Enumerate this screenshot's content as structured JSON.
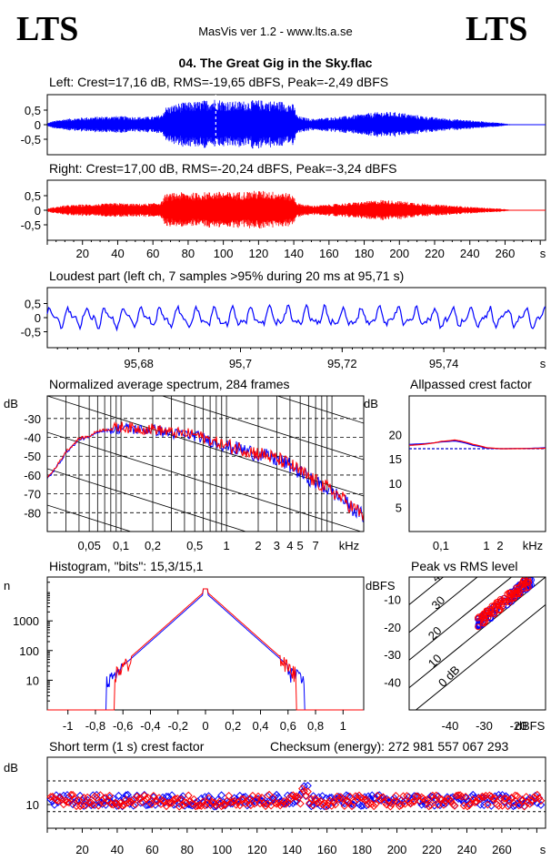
{
  "header": {
    "logo_left": "LTS",
    "logo_right": "LTS",
    "app_title": "MasVis ver 1.2 - www.lts.a.se",
    "track_title": "04. The Great Gig in the Sky.flac"
  },
  "colors": {
    "left": "#0000ff",
    "right": "#ff0000",
    "frame": "#000000"
  },
  "chart_data": [
    {
      "id": "left_waveform",
      "type": "area",
      "title": "Left: Crest=17,16 dB, RMS=-19,65 dBFS, Peak=-2,49 dBFS",
      "series": [
        {
          "name": "left",
          "color": "#0000ff"
        }
      ],
      "ylim": [
        -1,
        1
      ],
      "yticks": [
        "0,5",
        "0",
        "-0,5"
      ],
      "xlim": [
        0,
        283
      ],
      "envelope": [
        [
          0,
          0.05
        ],
        [
          3,
          0.12
        ],
        [
          10,
          0.2
        ],
        [
          20,
          0.25
        ],
        [
          30,
          0.28
        ],
        [
          40,
          0.3
        ],
        [
          50,
          0.27
        ],
        [
          60,
          0.28
        ],
        [
          65,
          0.35
        ],
        [
          67,
          0.6
        ],
        [
          75,
          0.75
        ],
        [
          85,
          0.8
        ],
        [
          95,
          0.9
        ],
        [
          105,
          0.8
        ],
        [
          120,
          0.85
        ],
        [
          135,
          0.8
        ],
        [
          140,
          0.7
        ],
        [
          142,
          0.3
        ],
        [
          150,
          0.2
        ],
        [
          160,
          0.25
        ],
        [
          170,
          0.3
        ],
        [
          180,
          0.38
        ],
        [
          190,
          0.45
        ],
        [
          200,
          0.42
        ],
        [
          210,
          0.33
        ],
        [
          220,
          0.25
        ],
        [
          230,
          0.2
        ],
        [
          240,
          0.15
        ],
        [
          250,
          0.1
        ],
        [
          258,
          0.06
        ],
        [
          262,
          0.02
        ],
        [
          270,
          0
        ],
        [
          283,
          0
        ]
      ],
      "marker_x": 95.71
    },
    {
      "id": "right_waveform",
      "type": "area",
      "title": "Right: Crest=17,00 dB, RMS=-20,24 dBFS, Peak=-3,24 dBFS",
      "series": [
        {
          "name": "right",
          "color": "#ff0000"
        }
      ],
      "ylim": [
        -1,
        1
      ],
      "yticks": [
        "0,5",
        "0",
        "-0,5"
      ],
      "xlim": [
        0,
        283
      ],
      "xticks": [
        "20",
        "40",
        "60",
        "80",
        "100",
        "120",
        "140",
        "160",
        "180",
        "200",
        "220",
        "240",
        "260"
      ],
      "xunit": "s",
      "envelope": [
        [
          0,
          0.05
        ],
        [
          3,
          0.1
        ],
        [
          10,
          0.17
        ],
        [
          20,
          0.2
        ],
        [
          30,
          0.22
        ],
        [
          40,
          0.25
        ],
        [
          50,
          0.22
        ],
        [
          60,
          0.24
        ],
        [
          65,
          0.3
        ],
        [
          67,
          0.55
        ],
        [
          75,
          0.62
        ],
        [
          85,
          0.6
        ],
        [
          95,
          0.65
        ],
        [
          105,
          0.62
        ],
        [
          120,
          0.68
        ],
        [
          135,
          0.62
        ],
        [
          140,
          0.5
        ],
        [
          142,
          0.25
        ],
        [
          150,
          0.16
        ],
        [
          160,
          0.2
        ],
        [
          170,
          0.25
        ],
        [
          180,
          0.3
        ],
        [
          190,
          0.36
        ],
        [
          200,
          0.32
        ],
        [
          210,
          0.26
        ],
        [
          220,
          0.2
        ],
        [
          230,
          0.16
        ],
        [
          240,
          0.12
        ],
        [
          250,
          0.08
        ],
        [
          258,
          0.05
        ],
        [
          262,
          0.02
        ],
        [
          270,
          0
        ],
        [
          283,
          0
        ]
      ]
    },
    {
      "id": "loudest_part",
      "type": "line",
      "title": "Loudest part (left  ch, 7 samples >95% during 20 ms at 95,71 s)",
      "series": [
        {
          "name": "left",
          "color": "#0000ff"
        }
      ],
      "ylim": [
        -1,
        1
      ],
      "yticks": [
        "0,5",
        "0",
        "-0,5"
      ],
      "xlim": [
        95.662,
        95.76
      ],
      "xticks": [
        "95,68",
        "95,7",
        "95,72",
        "95,74"
      ],
      "xunit": "s"
    },
    {
      "id": "spectrum",
      "type": "line",
      "title": "Normalized average spectrum, 284 frames",
      "ylabel": "dB",
      "yticks": [
        "-30",
        "-40",
        "-50",
        "-60",
        "-70",
        "-80"
      ],
      "ylim": [
        -90,
        -18
      ],
      "xscale": "log",
      "xlim": [
        0.02,
        20
      ],
      "xticks": [
        "0,05",
        "0,1",
        "0,2",
        "0,5",
        "1",
        "2",
        "3",
        "4",
        "5",
        "7"
      ],
      "xunit": "kHz",
      "curve_points": [
        [
          0.02,
          -62
        ],
        [
          0.025,
          -55
        ],
        [
          0.03,
          -48
        ],
        [
          0.04,
          -41
        ],
        [
          0.05,
          -40
        ],
        [
          0.06,
          -37
        ],
        [
          0.08,
          -36
        ],
        [
          0.1,
          -35
        ],
        [
          0.15,
          -36
        ],
        [
          0.2,
          -36
        ],
        [
          0.3,
          -38
        ],
        [
          0.5,
          -39
        ],
        [
          0.7,
          -42
        ],
        [
          1,
          -45
        ],
        [
          1.5,
          -47
        ],
        [
          2,
          -49
        ],
        [
          3,
          -52
        ],
        [
          4,
          -55
        ],
        [
          5,
          -59
        ],
        [
          7,
          -64
        ],
        [
          10,
          -69
        ],
        [
          15,
          -77
        ],
        [
          20,
          -82
        ]
      ],
      "series": [
        {
          "name": "left",
          "color": "#0000ff"
        },
        {
          "name": "right",
          "color": "#ff0000"
        }
      ]
    },
    {
      "id": "allpassed_crest",
      "type": "line",
      "title": "Allpassed crest factor",
      "ylabel": "dB",
      "yticks": [
        "20",
        "15",
        "10",
        "5"
      ],
      "ylim": [
        0,
        28
      ],
      "xscale": "log",
      "xlim": [
        0.02,
        20
      ],
      "xticks": [
        "0,1",
        "1",
        "2"
      ],
      "xunit": "kHz",
      "reference_level": 17.1,
      "series": [
        {
          "name": "left",
          "color": "#0000ff",
          "points": [
            [
              0.02,
              18
            ],
            [
              0.1,
              18.5
            ],
            [
              0.2,
              18.7
            ],
            [
              0.5,
              17.8
            ],
            [
              1,
              17.2
            ],
            [
              2,
              17.1
            ],
            [
              20,
              17.3
            ]
          ]
        },
        {
          "name": "right",
          "color": "#ff0000",
          "points": [
            [
              0.02,
              17.8
            ],
            [
              0.1,
              18.6
            ],
            [
              0.2,
              18.9
            ],
            [
              0.5,
              18
            ],
            [
              1,
              17.3
            ],
            [
              2,
              17.1
            ],
            [
              20,
              17.2
            ]
          ]
        }
      ]
    },
    {
      "id": "histogram",
      "type": "line",
      "title": "Histogram, \"bits\": 15,3/15,1",
      "ylabel": "n",
      "yscale": "log",
      "ylim": [
        1,
        30000
      ],
      "yticks": [
        "1000",
        "100",
        "10"
      ],
      "xlim": [
        -1.15,
        1.15
      ],
      "xticks": [
        "-1",
        "-0,8",
        "-0,6",
        "-0,4",
        "-0,2",
        "0",
        "0,2",
        "0,4",
        "0,6",
        "0,8",
        "1"
      ],
      "series": [
        {
          "name": "left",
          "color": "#0000ff",
          "extent": 0.72
        },
        {
          "name": "right",
          "color": "#ff0000",
          "extent": 0.66
        }
      ]
    },
    {
      "id": "peak_vs_rms",
      "type": "scatter",
      "title": "Peak vs RMS level",
      "ylabel": "dBFS",
      "xlabel": "dBFS",
      "xlim": [
        -52,
        -12
      ],
      "ylim": [
        -50,
        -2
      ],
      "xticks": [
        "-40",
        "-30",
        "-20"
      ],
      "yticks": [
        "-10",
        "-20",
        "-30",
        "-40"
      ],
      "diagonals": [
        "40",
        "30",
        "20",
        "10",
        "0 dB"
      ],
      "series": [
        {
          "name": "left",
          "color": "#0000ff"
        },
        {
          "name": "right",
          "color": "#ff0000"
        }
      ]
    },
    {
      "id": "short_term_crest",
      "type": "scatter",
      "title": "Short term (1 s) crest factor",
      "ylabel": "dB",
      "ylim": [
        4,
        22
      ],
      "yticks": [
        "10"
      ],
      "reference_level": 16,
      "xlim": [
        0,
        285
      ],
      "xticks": [
        "20",
        "40",
        "60",
        "80",
        "100",
        "120",
        "140",
        "160",
        "180",
        "200",
        "220",
        "240",
        "260"
      ],
      "xunit": "s",
      "series": [
        {
          "name": "left",
          "color": "#0000ff"
        },
        {
          "name": "right",
          "color": "#ff0000"
        }
      ]
    }
  ],
  "checksum": "Checksum (energy):   272 981 557 067 293"
}
